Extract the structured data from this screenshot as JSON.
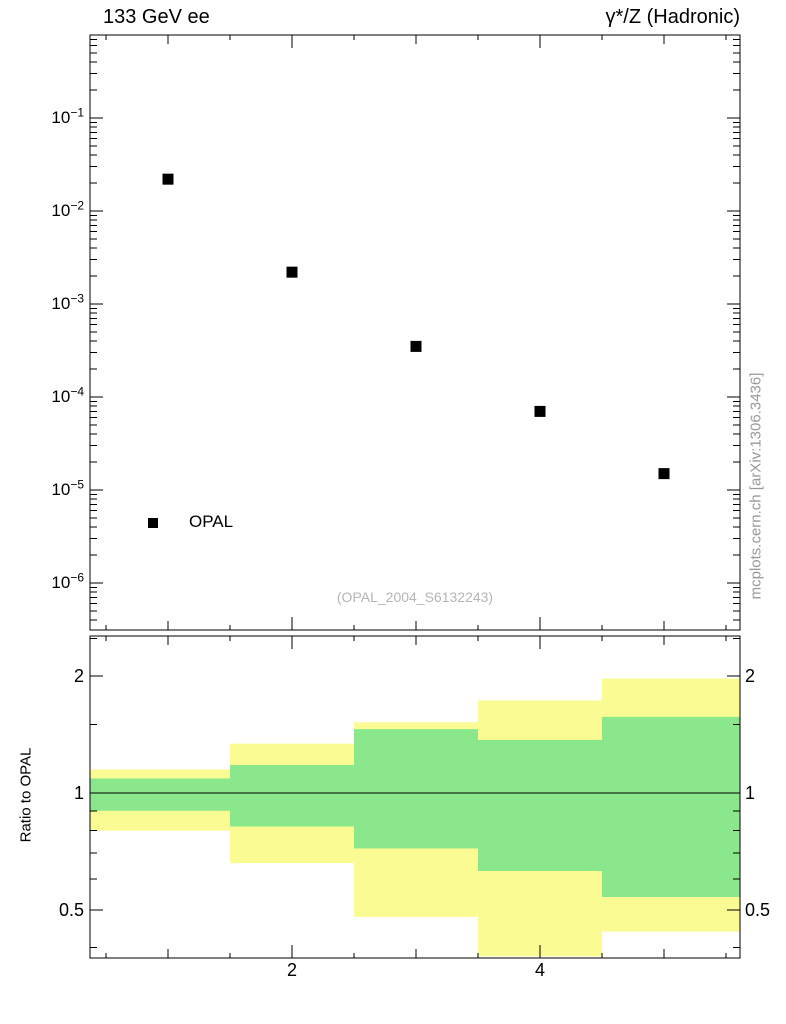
{
  "header": {
    "left": "133 GeV ee",
    "right": "γ*/Z (Hadronic)"
  },
  "side_note": "mcplots.cern.ch [arXiv:1306.3436]",
  "watermark": "(OPAL_2004_S6132243)",
  "legend": {
    "label": "OPAL"
  },
  "ratio_ylabel": "Ratio to OPAL",
  "colors": {
    "marker": "#000000",
    "band_outer": "#fbfb94",
    "band_inner": "#8be78b",
    "watermark": "#b5b5b5",
    "side_note": "#999999",
    "frame": "#000000"
  },
  "chart_data": [
    {
      "type": "scatter",
      "panel": "main",
      "yscale": "log",
      "xlim": [
        0.37,
        5.61
      ],
      "ylim": [
        3.1e-07,
        0.78
      ],
      "ytick_exponents": [
        -1,
        -2,
        -3,
        -4,
        -5,
        -6
      ],
      "xticks": [
        2,
        4
      ],
      "series": [
        {
          "name": "OPAL",
          "marker": "filled-square",
          "x": [
            1,
            2,
            3,
            4,
            5
          ],
          "y": [
            0.022,
            0.0022,
            0.00035,
            7e-05,
            1.5e-05
          ]
        }
      ]
    },
    {
      "type": "area",
      "panel": "ratio",
      "ylabel": "Ratio to OPAL",
      "yscale": "log",
      "ylim": [
        0.376,
        2.53
      ],
      "yticks": [
        2,
        1,
        0.5
      ],
      "minor_yticks": [
        0.4,
        0.6,
        0.7,
        0.8,
        0.9,
        1.5,
        2.5
      ],
      "xticks": [
        2,
        4
      ],
      "bin_edges": [
        0.37,
        1.5,
        2.5,
        3.5,
        4.5,
        5.61
      ],
      "bands": [
        {
          "name": "outer-uncertainty",
          "color": "#fbfb94",
          "low": [
            0.8,
            0.66,
            0.48,
            0.38,
            0.44
          ],
          "high": [
            1.15,
            1.34,
            1.52,
            1.73,
            1.97
          ]
        },
        {
          "name": "inner-uncertainty",
          "color": "#8be78b",
          "low": [
            0.9,
            0.82,
            0.72,
            0.63,
            0.54
          ],
          "high": [
            1.09,
            1.18,
            1.46,
            1.37,
            1.57
          ]
        }
      ],
      "reference_line": 1
    }
  ]
}
